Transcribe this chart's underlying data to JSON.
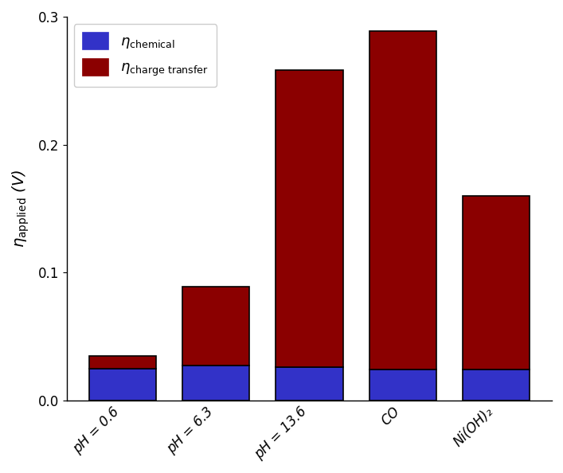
{
  "categories": [
    "pH = 0.6",
    "pH = 6.3",
    "pH = 13.6",
    "CO",
    "Ni(OH)₂"
  ],
  "chemical_values": [
    0.025,
    0.027,
    0.026,
    0.024,
    0.024
  ],
  "charge_transfer_values": [
    0.01,
    0.062,
    0.232,
    0.265,
    0.136
  ],
  "chemical_color": "#3232C8",
  "charge_transfer_color": "#8B0000",
  "bar_edge_color": "#000000",
  "bar_width": 0.72,
  "ylim": [
    0,
    0.3
  ],
  "yticks": [
    0.0,
    0.1,
    0.2,
    0.3
  ],
  "ylabel": "$\\eta_{\\mathrm{applied}}$ (V)",
  "legend_chemical": "$\\eta_{\\mathrm{chemical}}$",
  "legend_charge_transfer": "$\\eta_{\\mathrm{charge\\ transfer}}$",
  "background_color": "#ffffff",
  "legend_loc": "upper left",
  "ylabel_fontsize": 14,
  "tick_fontsize": 12,
  "legend_fontsize": 13,
  "figsize": [
    7.07,
    5.94
  ],
  "dpi": 100
}
